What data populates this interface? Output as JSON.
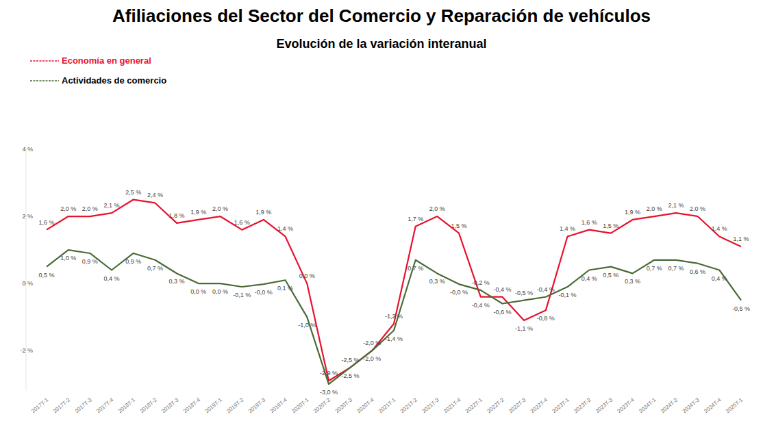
{
  "chart_data": {
    "type": "line",
    "title": "Afiliaciones del Sector del Comercio y Reparación de vehículos",
    "subtitle": "Evolución de la variación interanual",
    "categories": [
      "2017T-1",
      "2017T-2",
      "2017T-3",
      "2017T-4",
      "2018T-1",
      "2018T-2",
      "2018T-3",
      "2018T-4",
      "2019T-1",
      "2019T-2",
      "2019T-3",
      "2019T-4",
      "2020T-1",
      "2020T-2",
      "2020T-3",
      "2020T-4",
      "2021T-1",
      "2021T-2",
      "2021T-3",
      "2021T-4",
      "2022T-1",
      "2022T-2",
      "2022T-3",
      "2022T-4",
      "2023T-1",
      "2023T-2",
      "2023T-3",
      "2023T-4",
      "2024T-1",
      "2024T-2",
      "2024T-3",
      "2024T-4",
      "2025T-1"
    ],
    "series": [
      {
        "name": "Economía en general",
        "color": "#e8112d",
        "values": [
          1.6,
          2.0,
          2.0,
          2.1,
          2.5,
          2.4,
          1.8,
          1.9,
          2.0,
          1.6,
          1.9,
          1.4,
          0.0,
          -2.9,
          -2.5,
          -2.0,
          -1.2,
          1.7,
          2.0,
          1.5,
          -0.4,
          -0.4,
          -1.1,
          -0.8,
          1.4,
          1.6,
          1.5,
          1.9,
          2.0,
          2.1,
          2.0,
          1.4,
          1.1
        ],
        "value_labels": [
          "1,6 %",
          "2,0 %",
          "2,0 %",
          "2,1 %",
          "2,5 %",
          "2,4 %",
          "1,8 %",
          "1,9 %",
          "2,0 %",
          "1,6 %",
          "1,9 %",
          "1,4 %",
          "0,0 %",
          "-2,9 %",
          "-2,5 %",
          "-2,0 %",
          "-1,2 %",
          "1,7 %",
          "2,0 %",
          "1,5 %",
          "-0,4 %",
          "-0,4 %",
          "-1,1 %",
          "-0,8 %",
          "1,4 %",
          "1,6 %",
          "1,5 %",
          "1,9 %",
          "2,0 %",
          "2,1 %",
          "2,0 %",
          "1,4 %",
          "1,1 %"
        ]
      },
      {
        "name": "Actividades de comercio",
        "color": "#4a6b35",
        "values": [
          0.5,
          1.0,
          0.9,
          0.4,
          0.9,
          0.7,
          0.3,
          0.0,
          0.0,
          -0.1,
          -0.02,
          0.1,
          -1.0,
          -3.0,
          -2.5,
          -2.0,
          -1.4,
          0.7,
          0.3,
          -0.02,
          -0.2,
          -0.6,
          -0.5,
          -0.4,
          -0.1,
          0.4,
          0.5,
          0.3,
          0.7,
          0.7,
          0.6,
          0.4,
          -0.5
        ],
        "value_labels": [
          "0,5 %",
          "1,0 %",
          "0,9 %",
          "0,4 %",
          "0,9 %",
          "0,7 %",
          "0,3 %",
          "0,0 %",
          "0,0 %",
          "-0,1 %",
          "-0,0 %",
          "0,1 %",
          "-1,0 %",
          "-3,0 %",
          "-2,5 %",
          "-2,0 %",
          "-1,4 %",
          "0,7 %",
          "0,3 %",
          "-0,0 %",
          "-0,2 %",
          "-0,6 %",
          "-0,5 %",
          "-0,4 %",
          "-0,1 %",
          "0,4 %",
          "0,5 %",
          "0,3 %",
          "0,7 %",
          "0,7 %",
          "0,6 %",
          "0,4 %",
          "-0,5 %"
        ]
      }
    ],
    "ylim": [
      -3.2,
      4
    ],
    "yticks": [
      {
        "value": -2,
        "label": "-2 %"
      },
      {
        "value": 0,
        "label": "0 %"
      },
      {
        "value": 2,
        "label": "2 %"
      },
      {
        "value": 4,
        "label": "4 %"
      }
    ],
    "grid": false,
    "legend": "top-left",
    "data_labels": true
  }
}
